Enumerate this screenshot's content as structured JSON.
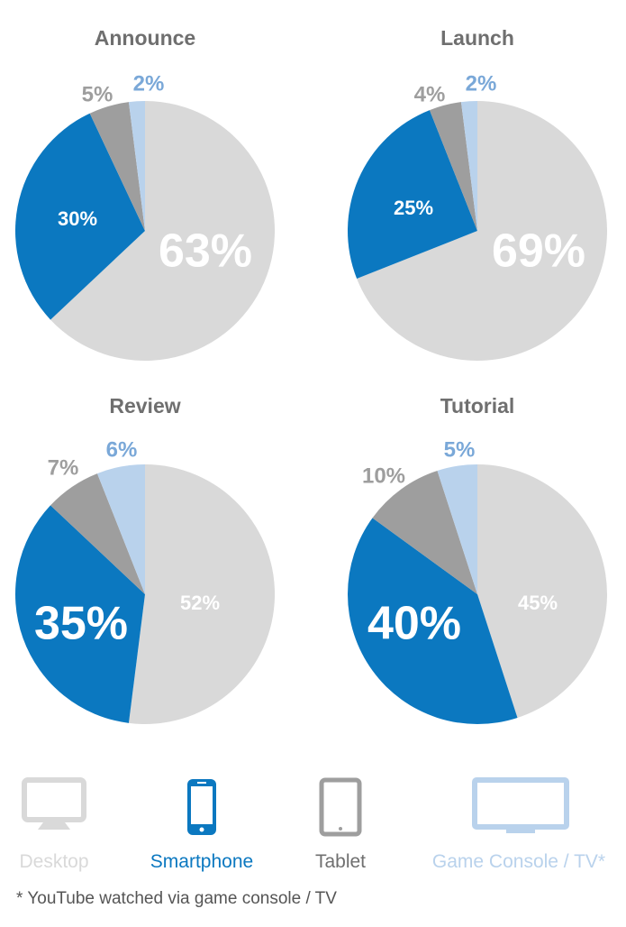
{
  "colors": {
    "desktop": "#d9d9d9",
    "smartphone": "#0b78c0",
    "tablet": "#9e9e9e",
    "console": "#b9d2ec",
    "title": "#6f6f6f"
  },
  "chart_data": [
    {
      "type": "pie",
      "title": "Announce",
      "categories": [
        "Desktop",
        "Smartphone",
        "Tablet",
        "Game Console / TV*"
      ],
      "values": [
        63,
        30,
        5,
        2
      ]
    },
    {
      "type": "pie",
      "title": "Launch",
      "categories": [
        "Desktop",
        "Smartphone",
        "Tablet",
        "Game Console / TV*"
      ],
      "values": [
        69,
        25,
        4,
        2
      ]
    },
    {
      "type": "pie",
      "title": "Review",
      "categories": [
        "Desktop",
        "Smartphone",
        "Tablet",
        "Game Console / TV*"
      ],
      "values": [
        52,
        35,
        7,
        6
      ]
    },
    {
      "type": "pie",
      "title": "Tutorial",
      "categories": [
        "Desktop",
        "Smartphone",
        "Tablet",
        "Game Console / TV*"
      ],
      "values": [
        45,
        40,
        10,
        5
      ]
    }
  ],
  "legend": {
    "desktop": "Desktop",
    "smartphone": "Smartphone",
    "tablet": "Tablet",
    "console": "Game Console / TV*"
  },
  "legend_icons": [
    "desktop-icon",
    "smartphone-icon",
    "tablet-icon",
    "tv-icon"
  ],
  "footnote": "* YouTube watched via game console / TV"
}
